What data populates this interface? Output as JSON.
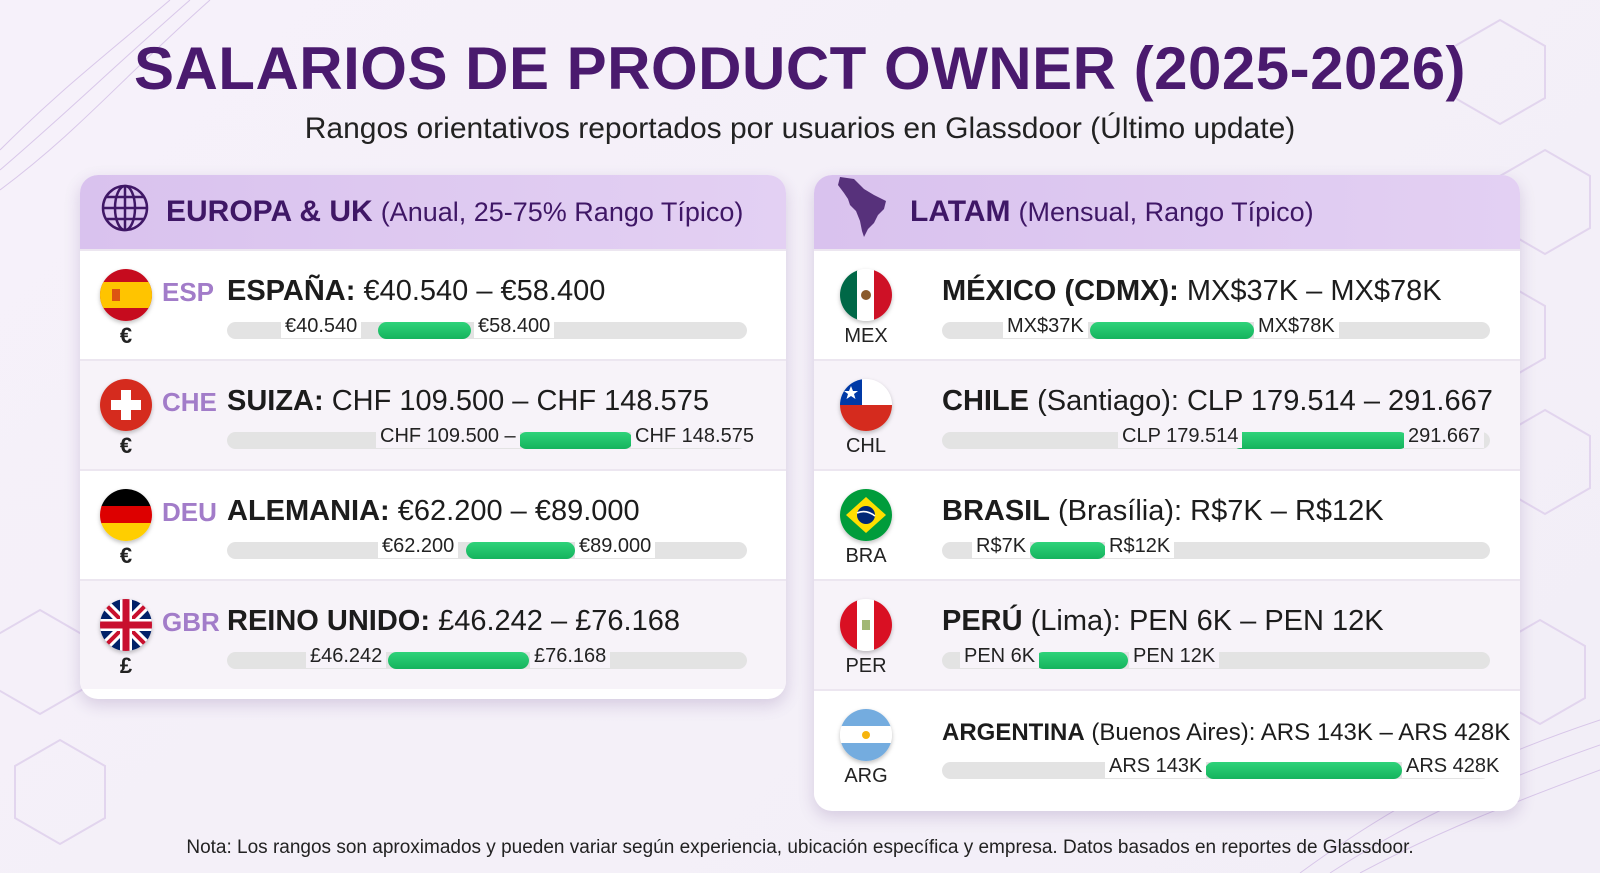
{
  "header": {
    "title": "SALARIOS DE PRODUCT OWNER (2025-2026)",
    "subtitle": "Rangos orientativos reportados por usuarios en Glassdoor (Último update)"
  },
  "europe": {
    "name": "EUROPA & UK",
    "note": "(Anual, 25-75% Rango Típico)",
    "icon": "globe-icon",
    "rows": [
      {
        "code": "ESP",
        "currency": "€",
        "country": "ESPAÑA:",
        "range": "€40.540 – €58.400",
        "low": "€40.540",
        "high": "€58.400",
        "fill": [
          0.29,
          0.47
        ]
      },
      {
        "code": "CHE",
        "currency": "€",
        "country": "SUIZA:",
        "range": "CHF 109.500 – CHF 148.575",
        "low": "CHF 109.500 –",
        "high": "CHF 148.575",
        "fill": [
          0.56,
          0.78
        ]
      },
      {
        "code": "DEU",
        "currency": "€",
        "country": "ALEMANIA:",
        "range": "€62.200 – €89.000",
        "low": "€62.200",
        "high": "€89.000",
        "fill": [
          0.46,
          0.67
        ]
      },
      {
        "code": "GBR",
        "currency": "£",
        "country": "REINO UNIDO:",
        "range": "£46.242 – £76.168",
        "low": "£46.242",
        "high": "£76.168",
        "fill": [
          0.31,
          0.58
        ]
      }
    ]
  },
  "latam": {
    "name": "LATAM",
    "note": "(Mensual, Rango Típico)",
    "icon": "latin-america-map-icon",
    "rows": [
      {
        "code": "MEX",
        "country": "MÉXICO (CDMX):",
        "range": "MX$37K – MX$78K",
        "low": "MX$37K",
        "high": "MX$78K",
        "fill": [
          0.27,
          0.57
        ]
      },
      {
        "code": "CHL",
        "country": "CHILE",
        "city": "(Santiago):",
        "range": "CLP 179.514 – 291.667",
        "low": "CLP 179.514",
        "high": "291.667",
        "fill": [
          0.53,
          0.85
        ]
      },
      {
        "code": "BRA",
        "country": "BRASIL",
        "city": "(Brasília):",
        "range": "R$7K – R$12K",
        "low": "R$7K",
        "high": "R$12K",
        "fill": [
          0.16,
          0.3
        ]
      },
      {
        "code": "PER",
        "country": "PERÚ",
        "city": "(Lima):",
        "range": "PEN 6K – PEN 12K",
        "low": "PEN 6K",
        "high": "PEN 12K",
        "fill": [
          0.17,
          0.34
        ]
      },
      {
        "code": "ARG",
        "country": "ARGENTINA",
        "city": "(Buenos Aires):",
        "range": "ARS 143K – ARS 428K",
        "low": "ARS 143K",
        "high": "ARS 428K",
        "fill": [
          0.48,
          0.84
        ]
      }
    ]
  },
  "footnote": "Nota: Los rangos son aproximados y pueden variar según experiencia, ubicación específica y empresa. Datos basados en reportes de Glassdoor."
}
